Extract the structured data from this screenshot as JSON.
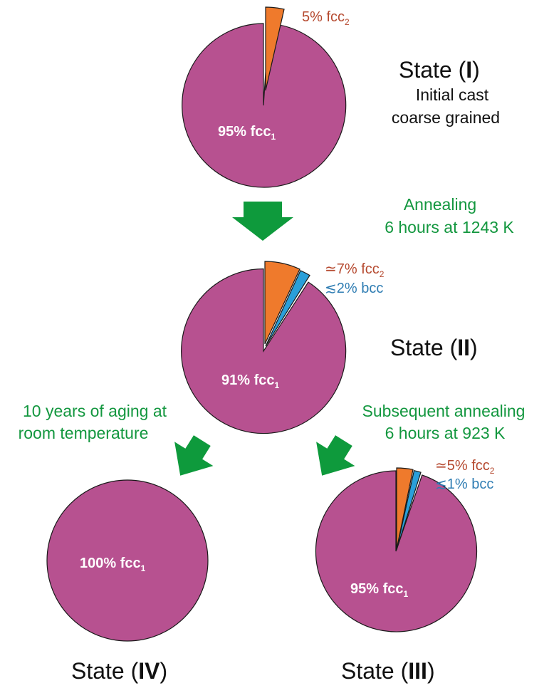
{
  "colors": {
    "fcc1": "#b75190",
    "fcc2": "#ef7a2c",
    "bcc": "#2a9fd9",
    "process_text": "#13973f",
    "fcc2_text": "#b5492f",
    "bcc_text": "#2f7db3",
    "inside_text": "#ffffff",
    "state_text": "#111111"
  },
  "states": {
    "state1": {
      "title_prefix": "State (",
      "title_roman": "I",
      "title_suffix": ")",
      "description": [
        "Initial cast",
        "coarse grained"
      ],
      "inside_label": {
        "main": "95% fcc",
        "sub": "1"
      },
      "fcc2_label": {
        "main": "5% fcc",
        "sub": "2"
      },
      "phases": {
        "fcc1": 95,
        "fcc2": 5,
        "bcc": 0
      }
    },
    "state2": {
      "title_prefix": "State (",
      "title_roman": "II",
      "title_suffix": ")",
      "inside_label": {
        "main": "91% fcc",
        "sub": "1"
      },
      "fcc2_label": {
        "main": "≃7% fcc",
        "sub": "2"
      },
      "bcc_label": "≲2% bcc",
      "phases": {
        "fcc1": 91,
        "fcc2": 7,
        "bcc": 2
      }
    },
    "state3": {
      "title_prefix": "State (",
      "title_roman": "III",
      "title_suffix": ")",
      "inside_label": {
        "main": "95% fcc",
        "sub": "1"
      },
      "fcc2_label": {
        "main": "≃5% fcc",
        "sub": "2"
      },
      "bcc_label": "≲1% bcc",
      "phases": {
        "fcc1": 95,
        "fcc2": 5,
        "bcc": 1
      }
    },
    "state4": {
      "title_prefix": "State (",
      "title_roman": "IV",
      "title_suffix": ")",
      "inside_label": {
        "main": "100% fcc",
        "sub": "1"
      },
      "phases": {
        "fcc1": 100,
        "fcc2": 0,
        "bcc": 0
      }
    }
  },
  "processes": {
    "annealing1": [
      "Annealing",
      "6 hours at 1243 K"
    ],
    "aging": [
      "10 years of aging at",
      "room temperature"
    ],
    "annealing2": [
      "Subsequent annealing",
      "6 hours at 923 K"
    ]
  },
  "icons": {
    "arrow1": "down-arrow-icon",
    "arrow2": "down-left-arrow-icon",
    "arrow3": "down-left-arrow-icon"
  }
}
